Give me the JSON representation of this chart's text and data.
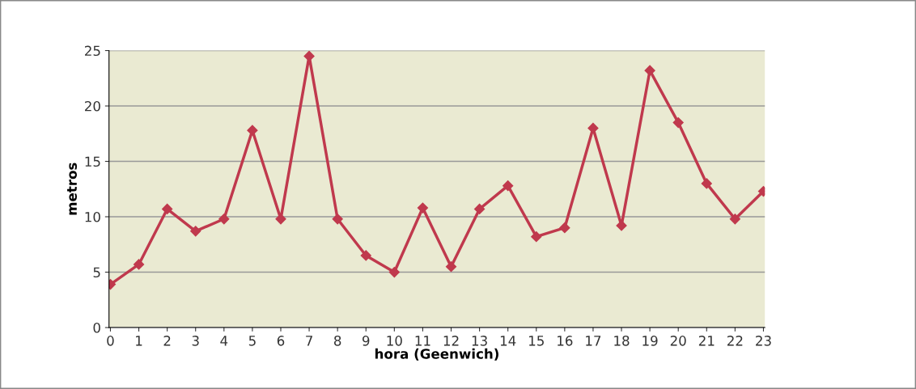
{
  "chart_data": {
    "type": "line",
    "xlabel": "hora (Geenwich)",
    "ylabel": "metros",
    "categories": [
      "0",
      "1",
      "2",
      "3",
      "4",
      "5",
      "6",
      "7",
      "8",
      "9",
      "10",
      "11",
      "12",
      "13",
      "14",
      "15",
      "16",
      "17",
      "18",
      "19",
      "20",
      "21",
      "22",
      "23"
    ],
    "series": [
      {
        "color": "#c0394d",
        "values": [
          3.9,
          5.7,
          10.7,
          8.7,
          9.8,
          17.8,
          9.8,
          24.5,
          9.8,
          6.5,
          5.0,
          10.8,
          5.5,
          10.7,
          12.8,
          8.2,
          9.0,
          18.0,
          9.2,
          23.2,
          18.5,
          13.0,
          9.8,
          12.3
        ]
      }
    ],
    "ylim": [
      0,
      25
    ],
    "yticks": [
      0,
      5,
      10,
      15,
      20,
      25
    ],
    "grid": "y",
    "marker": "diamond",
    "line_style": "solid"
  }
}
